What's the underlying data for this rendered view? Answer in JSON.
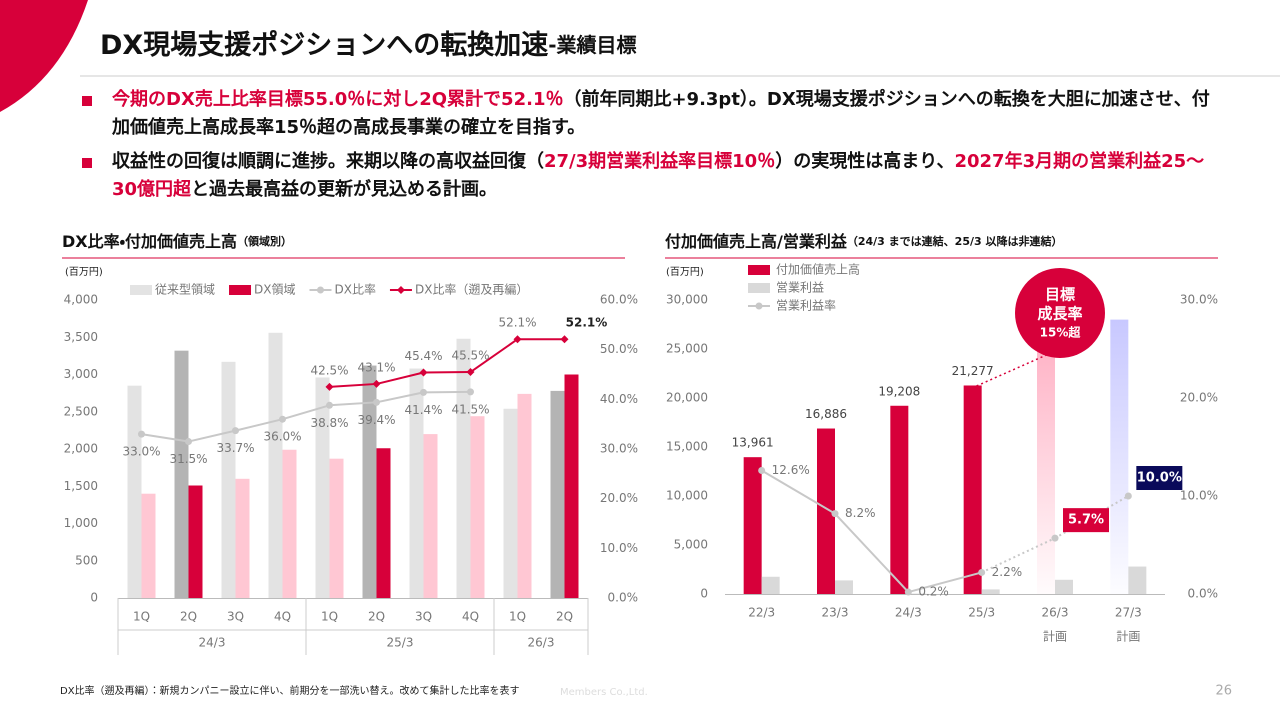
{
  "title_main": "DX現場支援ポジションへの転換加速",
  "title_sub": "-業績目標",
  "bullets": [
    [
      {
        "text": "今期のDX売上比率目標55.0％に対し2Q累計で52.1％",
        "emphasis": true
      },
      {
        "text": "（前年同期比+9.3pt）。DX現場支援ポジションへの転換を大胆に加速させ、付加価値売上高成長率15％超の高成長事業の確立を目指す。",
        "emphasis": false
      }
    ],
    [
      {
        "text": "収益性の回復は順調に進捗。来期以降の高収益回復（",
        "emphasis": false
      },
      {
        "text": "27/3期営業利益率目標10％",
        "emphasis": true
      },
      {
        "text": "）の実現性は高まり、",
        "emphasis": false
      },
      {
        "text": "2027年3月期の営業利益25～30億円超",
        "emphasis": true
      },
      {
        "text": "と過去最高益の更新が見込める計画。",
        "emphasis": false
      }
    ]
  ],
  "footnote": "DX比率（遡及再編）：新規カンパニー設立に伴い、前期分を一部洗い替え。改めて集計した比率を表す",
  "company": "Members Co.,Ltd.",
  "page_number": "26",
  "chart_data": [
    {
      "type": "bar",
      "title": "DX比率・付加価値売上高",
      "title_note": "（領域別）",
      "y_label": "(百万円)",
      "legend": "top",
      "categories": [
        "1Q",
        "2Q",
        "3Q",
        "4Q",
        "1Q",
        "2Q",
        "3Q",
        "4Q",
        "1Q",
        "2Q"
      ],
      "x_groups": [
        {
          "label": "24/3",
          "size": 4
        },
        {
          "label": "25/3",
          "size": 4
        },
        {
          "label": "26/3",
          "size": 2
        }
      ],
      "series": [
        {
          "name": "従来型領域",
          "kind": "bar",
          "color": "#e3e3e3",
          "colors": [
            "#e3e3e3",
            "#b4b4b4",
            "#e3e3e3",
            "#e3e3e3",
            "#e3e3e3",
            "#b4b4b4",
            "#e3e3e3",
            "#e3e3e3",
            "#e3e3e3",
            "#b4b4b4"
          ],
          "values": [
            2850,
            3320,
            3170,
            3560,
            2960,
            3120,
            3080,
            3480,
            2540,
            2780
          ]
        },
        {
          "name": "DX領域",
          "kind": "bar",
          "color": "#d7003a",
          "colors": [
            "#ffc7d3",
            "#d7003a",
            "#ffc7d3",
            "#ffc7d3",
            "#ffc7d3",
            "#d7003a",
            "#ffc7d3",
            "#ffc7d3",
            "#ffc7d3",
            "#d7003a"
          ],
          "values": [
            1400,
            1510,
            1600,
            1990,
            1870,
            2010,
            2200,
            2440,
            2740,
            3000
          ]
        },
        {
          "name": "DX比率",
          "kind": "line",
          "axis": "y2",
          "color": "#c8c8c8",
          "marker": "circle",
          "label_position": "below",
          "values": [
            33.0,
            31.5,
            33.7,
            36.0,
            38.8,
            39.4,
            41.4,
            41.5,
            null,
            null
          ],
          "value_labels": [
            "33.0%",
            "31.5%",
            "33.7%",
            "36.0%",
            "38.8%",
            "39.4%",
            "41.4%",
            "41.5%",
            null,
            null
          ]
        },
        {
          "name": "DX比率（遡及再編）",
          "kind": "line",
          "axis": "y2",
          "color": "#d7003a",
          "marker": "diamond",
          "label_position": "above",
          "values": [
            null,
            null,
            null,
            null,
            42.5,
            43.1,
            45.4,
            45.5,
            52.1,
            52.1
          ],
          "value_labels": [
            null,
            null,
            null,
            null,
            "42.5%",
            "43.1%",
            "45.4%",
            "45.5%",
            "52.1%",
            "52.1%"
          ]
        }
      ],
      "ylim": [
        0,
        4000
      ],
      "yticks": [
        0,
        500,
        {
          "value": 1000,
          "label": "1,000"
        },
        {
          "value": 1500,
          "label": "1,500"
        },
        {
          "value": 2000,
          "label": "2,000"
        },
        {
          "value": 2500,
          "label": "2,500"
        },
        {
          "value": 3000,
          "label": "3,000"
        },
        {
          "value": 3500,
          "label": "3,500"
        },
        {
          "value": 4000,
          "label": "4,000"
        }
      ],
      "y2lim": [
        0,
        60
      ],
      "y2ticks": [
        {
          "value": 0,
          "label": "0.0%"
        },
        {
          "value": 10,
          "label": "10.0%"
        },
        {
          "value": 20,
          "label": "20.0%"
        },
        {
          "value": 30,
          "label": "30.0%"
        },
        {
          "value": 40,
          "label": "40.0%"
        },
        {
          "value": 50,
          "label": "50.0%"
        },
        {
          "value": 60,
          "label": "60.0%"
        }
      ]
    },
    {
      "type": "bar",
      "title": "付加価値売上高/営業利益",
      "title_note": "（24/3 までは連結、25/3 以降は非連結）",
      "y_label": "(百万円)",
      "legend": "top-left",
      "categories": [
        "22/3",
        "23/3",
        "24/3",
        "25/3",
        "26/3",
        "27/3"
      ],
      "category_notes": [
        null,
        null,
        null,
        null,
        "計画",
        "計画"
      ],
      "series": [
        {
          "name": "付加価値売上高",
          "kind": "bar",
          "color": "#d7003a",
          "colors": [
            "#d7003a",
            "#d7003a",
            "#d7003a",
            "#d7003a",
            "#ffb3c6",
            "#c8c8ff"
          ],
          "values": [
            13961,
            16886,
            19208,
            21277,
            25500,
            28000
          ],
          "value_labels": [
            "13,961",
            "16,886",
            "19,208",
            "21,277",
            null,
            null
          ]
        },
        {
          "name": "営業利益",
          "kind": "bar",
          "color": "#d9d9d9",
          "values": [
            1760,
            1390,
            40,
            470,
            1450,
            2800
          ]
        },
        {
          "name": "営業利益率",
          "kind": "line",
          "axis": "y2",
          "color": "#c8c8c8",
          "marker": "circle",
          "label_position": "right",
          "values": [
            12.6,
            8.2,
            0.2,
            2.2,
            5.7,
            10.0
          ],
          "value_labels": [
            "12.6%",
            "8.2%",
            "0.2%",
            "2.2%",
            "5.7%",
            "10.0%"
          ],
          "label_box_colors": [
            null,
            null,
            null,
            null,
            "#d7003a",
            "#0a0a5a"
          ]
        }
      ],
      "ylim": [
        0,
        30000
      ],
      "yticks": [
        0,
        {
          "value": 5000,
          "label": "5,000"
        },
        {
          "value": 10000,
          "label": "10,000"
        },
        {
          "value": 15000,
          "label": "15,000"
        },
        {
          "value": 20000,
          "label": "20,000"
        },
        {
          "value": 25000,
          "label": "25,000"
        },
        {
          "value": 30000,
          "label": "30,000"
        }
      ],
      "y2lim": [
        0,
        30
      ],
      "y2ticks": [
        {
          "value": 0,
          "label": "0.0%"
        },
        {
          "value": 10,
          "label": "10.0%"
        },
        {
          "value": 20,
          "label": "20.0%"
        },
        {
          "value": 30,
          "label": "30.0%"
        }
      ],
      "annotation": {
        "lines": [
          "目標",
          "成長率",
          "15%超"
        ],
        "color": "#d7003a"
      }
    }
  ]
}
